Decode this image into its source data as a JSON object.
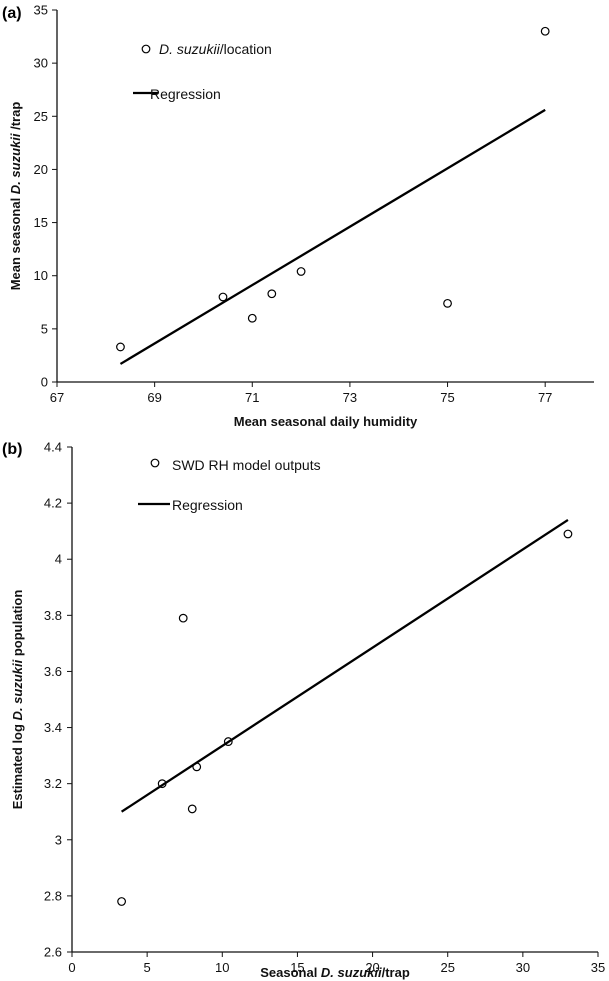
{
  "chart_data": [
    {
      "type": "scatter",
      "panel_label": "(a)",
      "xlabel": "Mean seasonal daily humidity",
      "ylabel_parts": [
        {
          "text": "Mean seasonal ",
          "italic": false
        },
        {
          "text": "D. suzukii",
          "italic": true
        },
        {
          "text": " /trap",
          "italic": false
        }
      ],
      "xlim": [
        67,
        78
      ],
      "ylim": [
        0,
        35
      ],
      "xticks": [
        67,
        69,
        71,
        73,
        75,
        77
      ],
      "yticks": [
        0,
        5,
        10,
        15,
        20,
        25,
        30,
        35
      ],
      "grid": false,
      "legend_position": "top-left",
      "series": [
        {
          "name_parts": [
            {
              "text": "D. suzukii",
              "italic": true
            },
            {
              "text": "/location",
              "italic": false
            }
          ],
          "kind": "points",
          "x": [
            68.3,
            70.4,
            71.0,
            71.4,
            72.0,
            75.0,
            77.0
          ],
          "y": [
            3.3,
            8.0,
            6.0,
            8.3,
            10.4,
            7.4,
            33.0
          ]
        },
        {
          "name_parts": [
            {
              "text": "Regression",
              "italic": false
            }
          ],
          "kind": "line",
          "x": [
            68.3,
            77.0
          ],
          "y": [
            1.7,
            25.6
          ]
        }
      ]
    },
    {
      "type": "scatter",
      "panel_label": "(b)",
      "xlabel_parts": [
        {
          "text": "Seasonal ",
          "italic": false
        },
        {
          "text": "D. suzukii",
          "italic": true
        },
        {
          "text": "/trap",
          "italic": false
        }
      ],
      "ylabel_parts": [
        {
          "text": "Estimated log ",
          "italic": false
        },
        {
          "text": "D. suzukii",
          "italic": true
        },
        {
          "text": " population",
          "italic": false
        }
      ],
      "xlim": [
        0,
        35
      ],
      "ylim": [
        2.6,
        4.4
      ],
      "xticks": [
        0,
        5,
        10,
        15,
        20,
        25,
        30,
        35
      ],
      "yticks": [
        2.6,
        2.8,
        3,
        3.2,
        3.4,
        3.6,
        3.8,
        4,
        4.2,
        4.4
      ],
      "grid": false,
      "legend_position": "top-left",
      "series": [
        {
          "name_parts": [
            {
              "text": "SWD RH model outputs",
              "italic": false
            }
          ],
          "kind": "points",
          "x": [
            3.3,
            6.0,
            7.4,
            8.0,
            8.3,
            10.4,
            33.0
          ],
          "y": [
            2.78,
            3.2,
            3.79,
            3.11,
            3.26,
            3.35,
            4.09
          ]
        },
        {
          "name_parts": [
            {
              "text": "Regression",
              "italic": false
            }
          ],
          "kind": "line",
          "x": [
            3.3,
            33.0
          ],
          "y": [
            3.1,
            4.14
          ]
        }
      ]
    }
  ]
}
